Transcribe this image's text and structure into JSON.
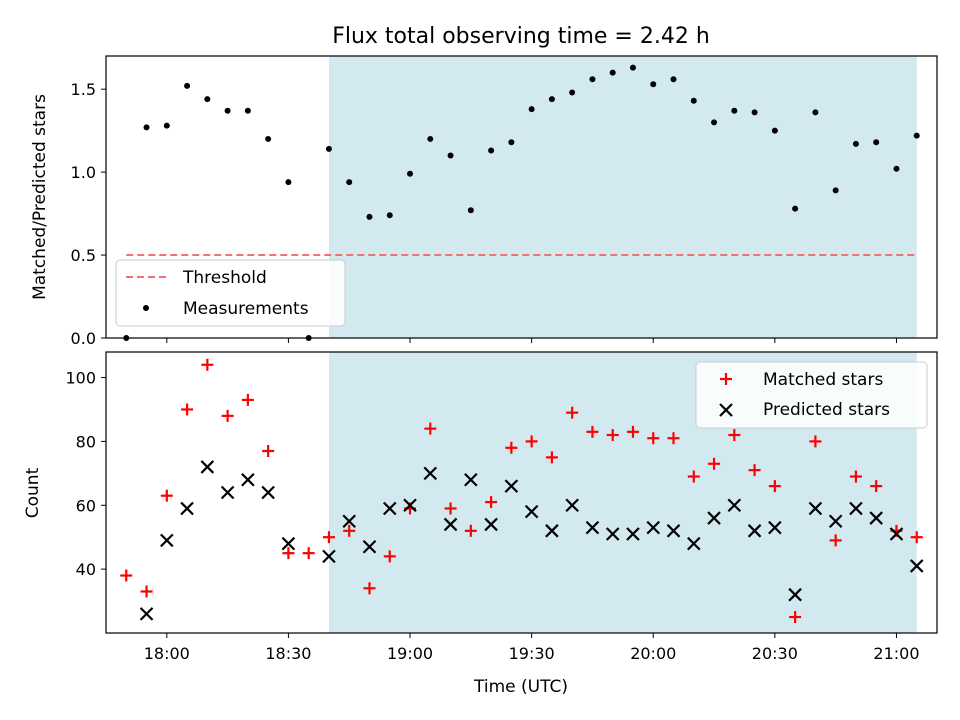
{
  "chart_data": [
    {
      "type": "scatter",
      "panel": "top",
      "title": "Flux total observing time = 2.42 h",
      "xlabel": "",
      "ylabel": "Matched/Predicted stars",
      "ylim": [
        0,
        1.7
      ],
      "yticks": [
        "0.0",
        "0.5",
        "1.0",
        "1.5"
      ],
      "xlim": [
        "17:45",
        "21:10"
      ],
      "shaded_region": {
        "x_start": "18:40",
        "x_end": "21:05",
        "color": "#d3e9f0"
      },
      "legend": {
        "placement": "lower-left",
        "entries": [
          "Threshold",
          "Measurements"
        ]
      },
      "threshold": {
        "name": "Threshold",
        "value": 0.5,
        "x_start": "17:50",
        "x_end": "21:05",
        "color": "#f07373"
      },
      "series": [
        {
          "name": "Measurements",
          "color": "#000000",
          "points": [
            [
              "17:50",
              0.0
            ],
            [
              "17:55",
              1.27
            ],
            [
              "18:00",
              1.28
            ],
            [
              "18:05",
              1.52
            ],
            [
              "18:10",
              1.44
            ],
            [
              "18:15",
              1.37
            ],
            [
              "18:20",
              1.37
            ],
            [
              "18:25",
              1.2
            ],
            [
              "18:30",
              0.94
            ],
            [
              "18:35",
              0.0
            ],
            [
              "18:40",
              1.14
            ],
            [
              "18:45",
              0.94
            ],
            [
              "18:50",
              0.73
            ],
            [
              "18:55",
              0.74
            ],
            [
              "19:00",
              0.99
            ],
            [
              "19:05",
              1.2
            ],
            [
              "19:10",
              1.1
            ],
            [
              "19:15",
              0.77
            ],
            [
              "19:20",
              1.13
            ],
            [
              "19:25",
              1.18
            ],
            [
              "19:30",
              1.38
            ],
            [
              "19:35",
              1.44
            ],
            [
              "19:40",
              1.48
            ],
            [
              "19:45",
              1.56
            ],
            [
              "19:50",
              1.6
            ],
            [
              "19:55",
              1.63
            ],
            [
              "20:00",
              1.53
            ],
            [
              "20:05",
              1.56
            ],
            [
              "20:10",
              1.43
            ],
            [
              "20:15",
              1.3
            ],
            [
              "20:20",
              1.37
            ],
            [
              "20:25",
              1.36
            ],
            [
              "20:30",
              1.25
            ],
            [
              "20:35",
              0.78
            ],
            [
              "20:40",
              1.36
            ],
            [
              "20:45",
              0.89
            ],
            [
              "20:50",
              1.17
            ],
            [
              "20:55",
              1.18
            ],
            [
              "21:00",
              1.02
            ],
            [
              "21:05",
              1.22
            ]
          ]
        }
      ]
    },
    {
      "type": "scatter",
      "panel": "bottom",
      "title": "",
      "xlabel": "Time (UTC)",
      "ylabel": "Count",
      "ylim": [
        20,
        108
      ],
      "yticks": [
        "40",
        "60",
        "80",
        "100"
      ],
      "xlim": [
        "17:45",
        "21:10"
      ],
      "xticks": [
        "18:00",
        "18:30",
        "19:00",
        "19:30",
        "20:00",
        "20:30",
        "21:00"
      ],
      "shaded_region": {
        "x_start": "18:40",
        "x_end": "21:05",
        "color": "#d3e9f0"
      },
      "legend": {
        "placement": "top-right",
        "entries": [
          "Matched stars",
          "Predicted stars"
        ]
      },
      "series": [
        {
          "name": "Matched stars",
          "marker": "plus",
          "color": "#ff0000",
          "points": [
            [
              "17:50",
              38
            ],
            [
              "17:55",
              33
            ],
            [
              "18:00",
              63
            ],
            [
              "18:05",
              90
            ],
            [
              "18:10",
              104
            ],
            [
              "18:15",
              88
            ],
            [
              "18:20",
              93
            ],
            [
              "18:25",
              77
            ],
            [
              "18:30",
              45
            ],
            [
              "18:35",
              45
            ],
            [
              "18:40",
              50
            ],
            [
              "18:45",
              52
            ],
            [
              "18:50",
              34
            ],
            [
              "18:55",
              44
            ],
            [
              "19:00",
              59
            ],
            [
              "19:05",
              84
            ],
            [
              "19:10",
              59
            ],
            [
              "19:15",
              52
            ],
            [
              "19:20",
              61
            ],
            [
              "19:25",
              78
            ],
            [
              "19:30",
              80
            ],
            [
              "19:35",
              75
            ],
            [
              "19:40",
              89
            ],
            [
              "19:45",
              83
            ],
            [
              "19:50",
              82
            ],
            [
              "19:55",
              83
            ],
            [
              "20:00",
              81
            ],
            [
              "20:05",
              81
            ],
            [
              "20:10",
              69
            ],
            [
              "20:15",
              73
            ],
            [
              "20:20",
              82
            ],
            [
              "20:25",
              71
            ],
            [
              "20:30",
              66
            ],
            [
              "20:35",
              25
            ],
            [
              "20:40",
              80
            ],
            [
              "20:45",
              49
            ],
            [
              "20:50",
              69
            ],
            [
              "20:55",
              66
            ],
            [
              "21:00",
              52
            ],
            [
              "21:05",
              50
            ]
          ]
        },
        {
          "name": "Predicted stars",
          "marker": "x",
          "color": "#000000",
          "points": [
            [
              "17:55",
              26
            ],
            [
              "18:00",
              49
            ],
            [
              "18:05",
              59
            ],
            [
              "18:10",
              72
            ],
            [
              "18:15",
              64
            ],
            [
              "18:20",
              68
            ],
            [
              "18:25",
              64
            ],
            [
              "18:30",
              48
            ],
            [
              "18:40",
              44
            ],
            [
              "18:45",
              55
            ],
            [
              "18:50",
              47
            ],
            [
              "18:55",
              59
            ],
            [
              "19:00",
              60
            ],
            [
              "19:05",
              70
            ],
            [
              "19:10",
              54
            ],
            [
              "19:15",
              68
            ],
            [
              "19:20",
              54
            ],
            [
              "19:25",
              66
            ],
            [
              "19:30",
              58
            ],
            [
              "19:35",
              52
            ],
            [
              "19:40",
              60
            ],
            [
              "19:45",
              53
            ],
            [
              "19:50",
              51
            ],
            [
              "19:55",
              51
            ],
            [
              "20:00",
              53
            ],
            [
              "20:05",
              52
            ],
            [
              "20:10",
              48
            ],
            [
              "20:15",
              56
            ],
            [
              "20:20",
              60
            ],
            [
              "20:25",
              52
            ],
            [
              "20:30",
              53
            ],
            [
              "20:35",
              32
            ],
            [
              "20:40",
              59
            ],
            [
              "20:45",
              55
            ],
            [
              "20:50",
              59
            ],
            [
              "20:55",
              56
            ],
            [
              "21:00",
              51
            ],
            [
              "21:05",
              41
            ]
          ]
        }
      ]
    }
  ]
}
